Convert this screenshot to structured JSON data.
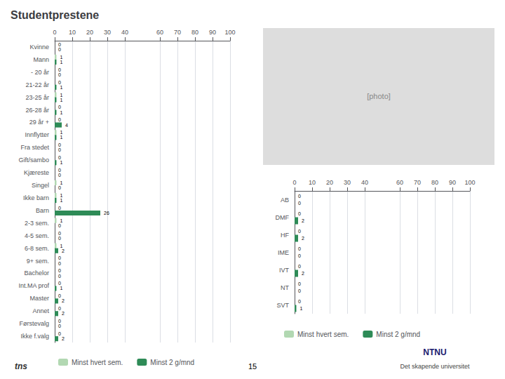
{
  "chart_data": [
    {
      "type": "bar",
      "title": "Studentprestene",
      "orientation": "horizontal",
      "categories": [
        "Kvinne",
        "Mann",
        "- 20 år",
        "21-22 år",
        "23-25 år",
        "26-28 år",
        "29 år +",
        "Innflytter",
        "Fra stedet",
        "Gift/sambo",
        "Kjæreste",
        "Singel",
        "Ikke barn",
        "Barn",
        "2-3 sem.",
        "4-5 sem.",
        "6-8 sem.",
        "9+ sem.",
        "Bachelor",
        "Int.MA prof",
        "Master",
        "Annet",
        "Førstevalg",
        "Ikke f.valg"
      ],
      "series": [
        {
          "name": "Minst hvert sem.",
          "color": "#b2d8b2",
          "values": [
            0,
            1,
            0,
            0,
            1,
            0,
            0,
            1,
            0,
            0,
            0,
            1,
            1,
            0,
            1,
            0,
            1,
            0,
            0,
            0,
            0,
            0,
            0,
            0
          ]
        },
        {
          "name": "Minst 2 g/mnd",
          "color": "#2e8b57",
          "values": [
            0,
            1,
            0,
            1,
            1,
            1,
            4,
            1,
            0,
            1,
            0,
            0,
            1,
            26,
            0,
            0,
            2,
            0,
            0,
            1,
            2,
            2,
            0,
            2
          ]
        }
      ],
      "xlim": [
        0,
        100
      ],
      "xticks": [
        0,
        10,
        20,
        30,
        40,
        60,
        60,
        70,
        80,
        90,
        100
      ],
      "grid": true,
      "legend": "bottom",
      "data_labels": true,
      "annotations": [
        "[photo]",
        "15",
        "tns",
        "NTNU",
        "Det skapende universitet"
      ]
    },
    {
      "type": "bar",
      "orientation": "horizontal",
      "categories": [
        "AB",
        "DMF",
        "HF",
        "IME",
        "IVT",
        "NT",
        "SVT"
      ],
      "series": [
        {
          "name": "Minst hvert sem.",
          "color": "#b2d8b2",
          "values": [
            0,
            0,
            0,
            0,
            0,
            0,
            0
          ]
        },
        {
          "name": "Minst 2 g/mnd",
          "color": "#2e8b57",
          "values": [
            0,
            2,
            2,
            0,
            2,
            0,
            1
          ]
        }
      ],
      "xlim": [
        0,
        100
      ],
      "xticks": [
        0,
        10,
        20,
        30,
        40,
        60,
        60,
        70,
        80,
        90,
        100
      ],
      "grid": true,
      "legend": "bottom",
      "data_labels": true
    }
  ]
}
